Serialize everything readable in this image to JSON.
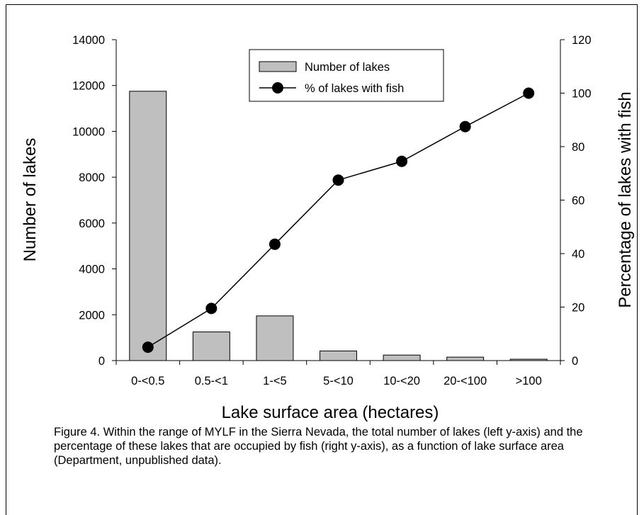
{
  "chart_data": {
    "type": "bar",
    "categories": [
      "0-<0.5",
      "0.5-<1",
      "1-<5",
      "5-<10",
      "10-<20",
      "20-<100",
      ">100"
    ],
    "series": [
      {
        "name": "Number of lakes",
        "kind": "bar",
        "axis": "left",
        "color": "#bfbfbf",
        "values": [
          11750,
          1250,
          1950,
          420,
          240,
          150,
          60
        ]
      },
      {
        "name": "% of lakes with fish",
        "kind": "line",
        "axis": "right",
        "color": "#000000",
        "values": [
          5,
          19.5,
          43.5,
          67.5,
          74.5,
          87.5,
          100
        ]
      }
    ],
    "xlabel": "Lake surface area (hectares)",
    "ylabel": "Number of lakes",
    "y2label": "Percentage of lakes with fish",
    "ylim": [
      0,
      14000
    ],
    "y2lim": [
      0,
      120
    ],
    "yticks": [
      "0",
      "2000",
      "4000",
      "6000",
      "8000",
      "10000",
      "12000",
      "14000"
    ],
    "y2ticks": [
      "0",
      "20",
      "40",
      "60",
      "80",
      "100",
      "120"
    ],
    "legend_position": "top-center",
    "grid": false
  },
  "caption": "Figure 4. Within the range of MYLF in the Sierra Nevada, the total number of lakes (left y-axis) and the percentage of these lakes that are occupied by fish (right y-axis), as a function of lake surface area (Department, unpublished data)."
}
